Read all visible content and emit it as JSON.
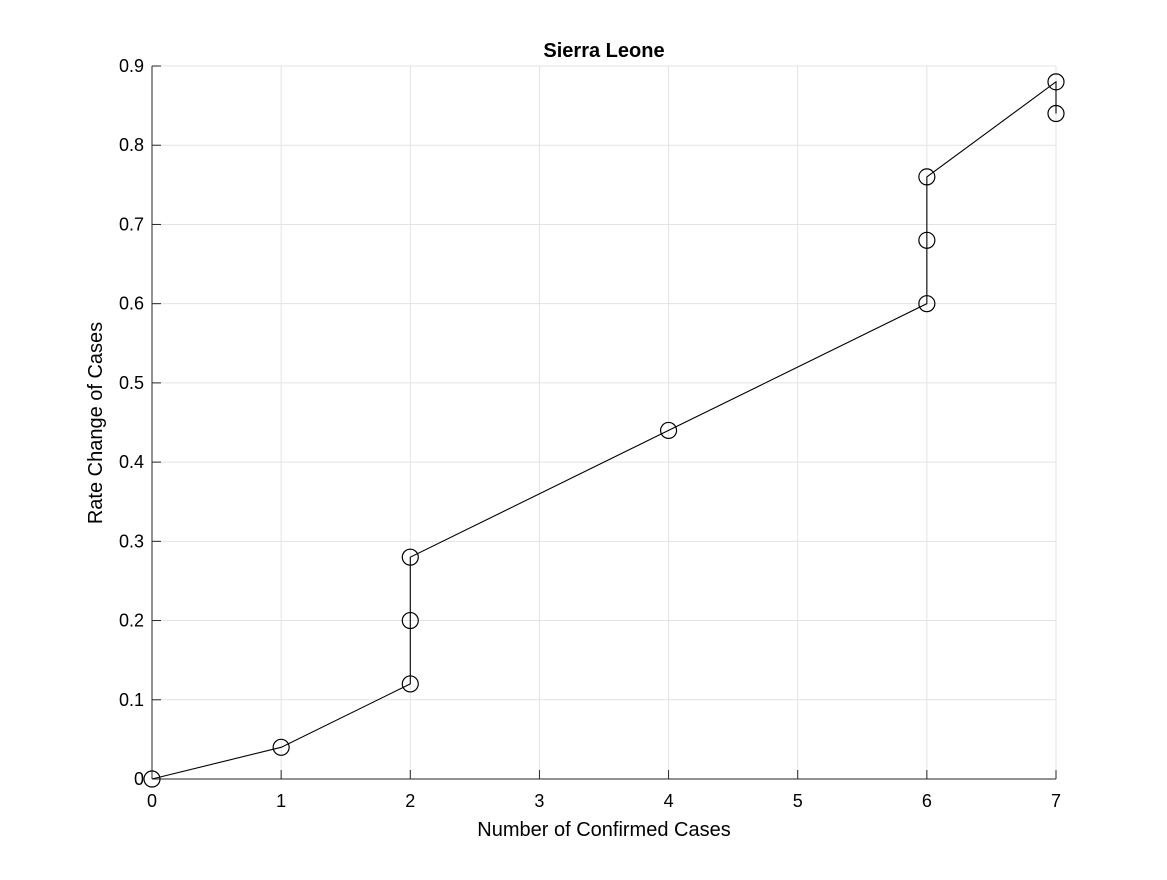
{
  "chart_data": {
    "type": "line",
    "title": "Sierra Leone",
    "xlabel": "Number of Confirmed Cases",
    "ylabel": "Rate Change of Cases",
    "xlim": [
      0,
      7
    ],
    "ylim": [
      0,
      0.9
    ],
    "xticks": [
      "0",
      "1",
      "2",
      "3",
      "4",
      "5",
      "6",
      "7"
    ],
    "yticks": [
      "0",
      "0.1",
      "0.2",
      "0.3",
      "0.4",
      "0.5",
      "0.6",
      "0.7",
      "0.8",
      "0.9"
    ],
    "grid": true,
    "marker": "open-circle",
    "series": [
      {
        "x": [
          0,
          1,
          2,
          2,
          2,
          4,
          6,
          6,
          6,
          7,
          7
        ],
        "y": [
          0,
          0.04,
          0.12,
          0.2,
          0.28,
          0.44,
          0.6,
          0.68,
          0.76,
          0.88,
          0.84
        ]
      }
    ],
    "colors": {
      "line": "#000000",
      "grid": "#e3e3e3",
      "axis": "#262626"
    }
  }
}
